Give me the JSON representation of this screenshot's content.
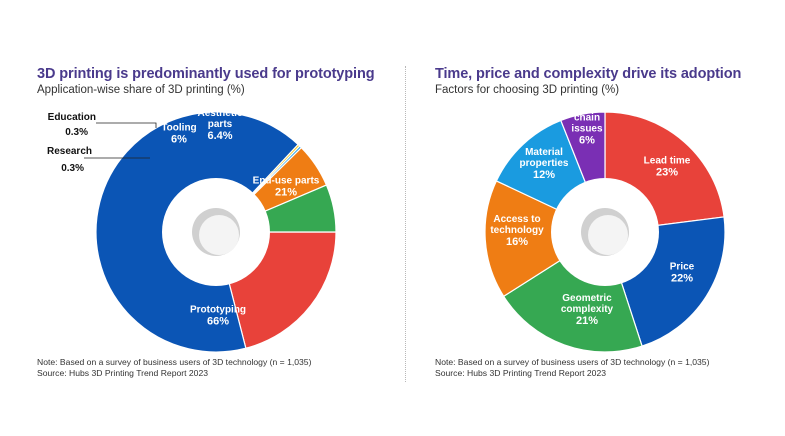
{
  "colors": {
    "title": "#4a3a8c",
    "blue": "#0b55b5",
    "red": "#e8423a",
    "green": "#36a852",
    "orange": "#ef7d14",
    "cyan": "#1a9be0",
    "yellow": "#f6c515",
    "purple": "#7a2fb4"
  },
  "left": {
    "title": "3D printing is predominantly used for prototyping",
    "subtitle": "Application-wise share of 3D printing (%)",
    "note": "Note: Based on a survey of business users of 3D technology (n = 1,035)",
    "source": "Source: Hubs 3D Printing Trend Report 2023"
  },
  "right": {
    "title": "Time, price and complexity drive its adoption",
    "subtitle": "Factors for choosing 3D printing (%)",
    "note": "Note: Based on a survey of business users of 3D technology (n = 1,035)",
    "source": "Source: Hubs 3D Printing Trend Report 2023"
  },
  "chart_data": [
    {
      "type": "pie",
      "donut": true,
      "title": "3D printing is predominantly used for prototyping",
      "subtitle": "Application-wise share of 3D printing (%)",
      "slices": [
        {
          "label": "End-use parts",
          "value": 21,
          "value_label": "21%",
          "color": "#e8423a"
        },
        {
          "label": "Prototyping",
          "value": 66,
          "value_label": "66%",
          "color": "#0b55b5"
        },
        {
          "label": "Research",
          "value": 0.3,
          "value_label": "0.3%",
          "color": "#f6c515"
        },
        {
          "label": "Education",
          "value": 0.3,
          "value_label": "0.3%",
          "color": "#1a9be0"
        },
        {
          "label": "Tooling",
          "value": 6,
          "value_label": "6%",
          "color": "#ef7d14"
        },
        {
          "label": "Aesthetic parts",
          "value": 6.4,
          "value_label": "6.4%",
          "color": "#36a852"
        }
      ]
    },
    {
      "type": "pie",
      "donut": true,
      "title": "Time, price and complexity drive its adoption",
      "subtitle": "Factors for choosing 3D printing (%)",
      "slices": [
        {
          "label": "Lead time",
          "value": 23,
          "value_label": "23%",
          "color": "#e8423a"
        },
        {
          "label": "Price",
          "value": 22,
          "value_label": "22%",
          "color": "#0b55b5"
        },
        {
          "label": "Geometric complexity",
          "value": 21,
          "value_label": "21%",
          "color": "#36a852"
        },
        {
          "label": "Access to technology",
          "value": 16,
          "value_label": "16%",
          "color": "#ef7d14"
        },
        {
          "label": "Material properties",
          "value": 12,
          "value_label": "12%",
          "color": "#1a9be0"
        },
        {
          "label": "Supply chain issues",
          "value": 6,
          "value_label": "6%",
          "color": "#7a2fb4"
        }
      ]
    }
  ]
}
